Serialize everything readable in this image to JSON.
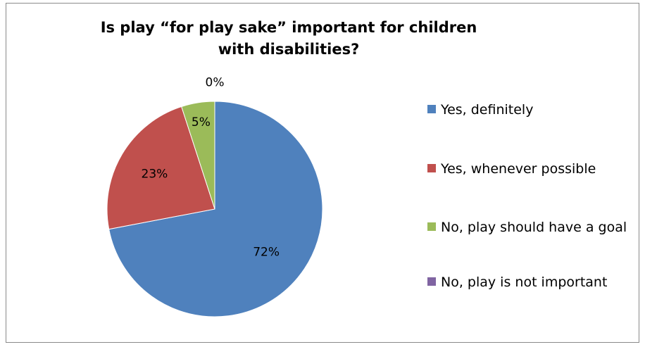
{
  "chart_data": {
    "type": "pie",
    "title": "Is play “for play sake” important for children with disabilities?",
    "categories": [
      "Yes, definitely",
      "Yes, whenever possible",
      "No, play should have a goal",
      "No, play is not important"
    ],
    "values": [
      72,
      23,
      5,
      0
    ],
    "data_labels": [
      "72%",
      "23%",
      "5%",
      "0%"
    ],
    "colors": [
      "#4F81BD",
      "#C0504D",
      "#9BBB59",
      "#8064A2"
    ],
    "legend_position": "right",
    "start_angle": "12 o'clock",
    "direction": "clockwise"
  }
}
